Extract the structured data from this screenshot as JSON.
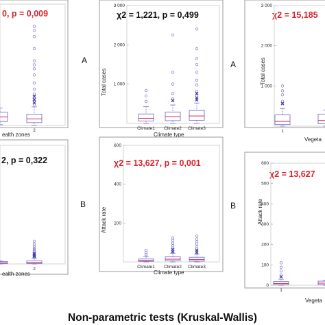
{
  "caption": "Non-parametric tests (Kruskal-Wallis)",
  "colors": {
    "stat_red": "#e0212b",
    "stat_black": "#111111",
    "box": "#7a70c8",
    "median": "#d0205a",
    "extreme": "#4540b8"
  },
  "chart_data": [
    {
      "id": "top-left",
      "type": "box",
      "stat": {
        "text": "0, p = 0,009",
        "color": "#e0212b"
      },
      "letter": "A",
      "xlabel": "ealth zones",
      "ylabel": "",
      "categories": [
        "",
        "2"
      ],
      "yticks": [],
      "ylim": [
        0,
        3000
      ],
      "boxes": [
        {
          "x": "",
          "q1": 100,
          "median": 210,
          "q3": 330,
          "lo": 20,
          "hi": 430,
          "outliers": [],
          "extremes": []
        },
        {
          "x": "2",
          "q1": 70,
          "median": 160,
          "q3": 280,
          "lo": 0,
          "hi": 460,
          "outliers": [
            520,
            600,
            680,
            780,
            900,
            1050,
            1250,
            1400,
            1500,
            1600,
            1900,
            2200,
            2350,
            2450
          ],
          "extremes": [
            560,
            640,
            720
          ]
        }
      ]
    },
    {
      "id": "top-middle",
      "type": "box",
      "stat": {
        "text": "χ2 = 1,221, p = 0,499",
        "color": "#111111"
      },
      "letter": "A",
      "xlabel": "Climate type",
      "ylabel": "Total cases",
      "categories": [
        "Climate1",
        "Climate2",
        "Climate3"
      ],
      "yticks": [
        "1 000",
        "2 000",
        "3 000"
      ],
      "ylim": [
        0,
        3000
      ],
      "boxes": [
        {
          "x": "Climate1",
          "q1": 60,
          "median": 130,
          "q3": 240,
          "lo": 0,
          "hi": 430,
          "outliers": [
            560,
            700,
            840
          ],
          "extremes": []
        },
        {
          "x": "Climate2",
          "q1": 70,
          "median": 170,
          "q3": 290,
          "lo": 0,
          "hi": 470,
          "outliers": [
            620,
            760,
            1000,
            1300,
            2250
          ],
          "extremes": [
            580
          ]
        },
        {
          "x": "Climate3",
          "q1": 80,
          "median": 190,
          "q3": 330,
          "lo": 0,
          "hi": 520,
          "outliers": [
            700,
            820,
            980,
            1100,
            1300,
            1500,
            1650,
            1900,
            2400
          ],
          "extremes": [
            600,
            650,
            760
          ]
        }
      ]
    },
    {
      "id": "top-right",
      "type": "box",
      "stat": {
        "text": "χ2 = 15,185",
        "color": "#e0212b"
      },
      "letter": "A",
      "xlabel": "Vegeta",
      "ylabel": "Total cases",
      "categories": [
        "1",
        ""
      ],
      "yticks": [
        "1 000",
        "2 000",
        "3 000"
      ],
      "ylim": [
        0,
        3000
      ],
      "boxes": [
        {
          "x": "1",
          "q1": 40,
          "median": 120,
          "q3": 280,
          "lo": 0,
          "hi": 440,
          "outliers": [
            620,
            780,
            880,
            1000
          ],
          "extremes": [
            560
          ]
        },
        {
          "x": "",
          "q1": 60,
          "median": 140,
          "q3": 300,
          "lo": 0,
          "hi": 400,
          "outliers": [],
          "extremes": []
        }
      ]
    },
    {
      "id": "bottom-left",
      "type": "box",
      "stat": {
        "text": "2, p = 0,322",
        "color": "#111111"
      },
      "letter": "B",
      "xlabel": "ealth zones",
      "ylabel": "",
      "categories": [
        "",
        "2"
      ],
      "yticks": [],
      "ylim": [
        0,
        600
      ],
      "boxes": [
        {
          "x": "",
          "q1": 2,
          "median": 6,
          "q3": 12,
          "lo": 0,
          "hi": 15,
          "outliers": [],
          "extremes": []
        },
        {
          "x": "2",
          "q1": 2,
          "median": 8,
          "q3": 16,
          "lo": 0,
          "hi": 28,
          "outliers": [
            34,
            40,
            48,
            56,
            64,
            72,
            80,
            90,
            100,
            115
          ],
          "extremes": [
            38,
            44,
            52
          ]
        }
      ]
    },
    {
      "id": "bottom-middle",
      "type": "box",
      "stat": {
        "text": "χ2 = 13,627, p = 0,001",
        "color": "#e0212b"
      },
      "letter": "B",
      "xlabel": "Climate type",
      "ylabel": "Attack rate",
      "categories": [
        "Climate1",
        "Climate2",
        "Climate3"
      ],
      "yticks": [
        "200",
        "400",
        "600"
      ],
      "ylim": [
        0,
        600
      ],
      "boxes": [
        {
          "x": "Climate1",
          "q1": 3,
          "median": 8,
          "q3": 15,
          "lo": 0,
          "hi": 28,
          "outliers": [
            38,
            48,
            60
          ],
          "extremes": []
        },
        {
          "x": "Climate2",
          "q1": 6,
          "median": 14,
          "q3": 26,
          "lo": 0,
          "hi": 45,
          "outliers": [
            58,
            72,
            84,
            96,
            110,
            122
          ],
          "extremes": [
            52,
            64
          ]
        },
        {
          "x": "Climate3",
          "q1": 4,
          "median": 12,
          "q3": 24,
          "lo": 0,
          "hi": 40,
          "outliers": [
            54,
            66,
            78,
            92,
            104,
            118,
            134
          ],
          "extremes": [
            48,
            60
          ]
        }
      ]
    },
    {
      "id": "bottom-right",
      "type": "box",
      "stat": {
        "text": "χ2 = 13,627",
        "color": "#e0212b"
      },
      "letter": "B",
      "xlabel": "Vegeta",
      "ylabel": "Attack rate",
      "categories": [
        "1",
        ""
      ],
      "yticks": [
        "0",
        "100",
        "200",
        "300",
        "400",
        "500",
        "600"
      ],
      "ylim": [
        0,
        600
      ],
      "boxes": [
        {
          "x": "1",
          "q1": 2,
          "median": 8,
          "q3": 18,
          "lo": 0,
          "hi": 30,
          "outliers": [
            50,
            70,
            88,
            110
          ],
          "extremes": [
            42
          ]
        },
        {
          "x": "",
          "q1": 3,
          "median": 10,
          "q3": 20,
          "lo": 0,
          "hi": 24,
          "outliers": [],
          "extremes": []
        }
      ]
    }
  ]
}
